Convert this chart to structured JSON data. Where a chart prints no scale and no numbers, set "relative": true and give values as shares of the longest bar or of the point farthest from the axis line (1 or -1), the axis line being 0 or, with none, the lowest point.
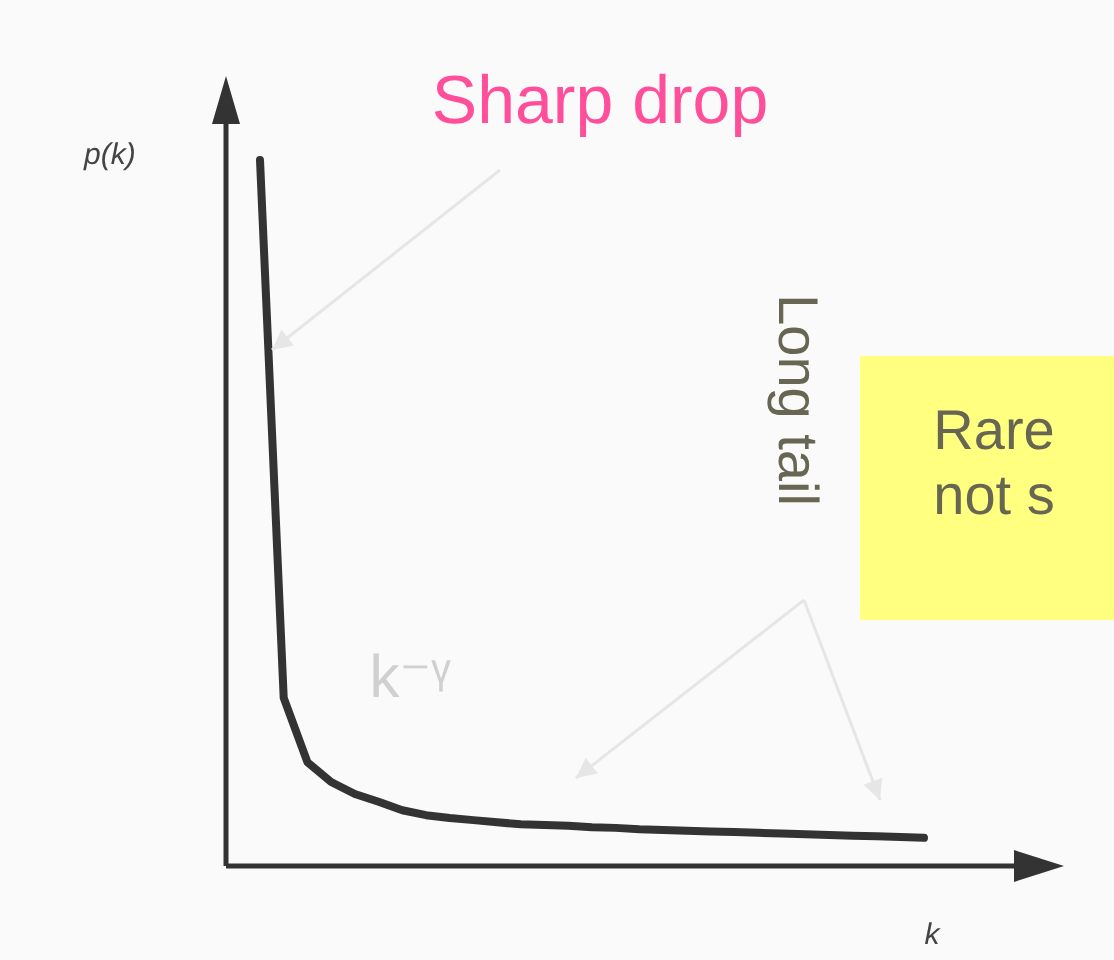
{
  "chart_data": {
    "type": "line",
    "relative": true,
    "xlabel": "k",
    "ylabel": "p(k)",
    "tick_labels": false,
    "categories": [
      null,
      null,
      null,
      null,
      null,
      null,
      null,
      null,
      null,
      null,
      null,
      null,
      null,
      null,
      null,
      null,
      null,
      null,
      null,
      null,
      null,
      null,
      null,
      null,
      null,
      null,
      null,
      null,
      null
    ],
    "series": [
      {
        "color": "#333333",
        "values": [
          1,
          0.238,
          0.147,
          0.119,
          0.102,
          0.091,
          0.079,
          0.072,
          0.068,
          0.065,
          0.062,
          0.059,
          0.058,
          0.057,
          0.055,
          0.054,
          0.052,
          0.051,
          0.05,
          0.049,
          0.048,
          0.047,
          0.046,
          0.045,
          0.044,
          0.043,
          0.042,
          0.041,
          0.04
        ]
      }
    ],
    "annotations": [
      "Sharp drop",
      "Long tail",
      "Rare\nnot s",
      "k⁻ᵞ"
    ]
  }
}
